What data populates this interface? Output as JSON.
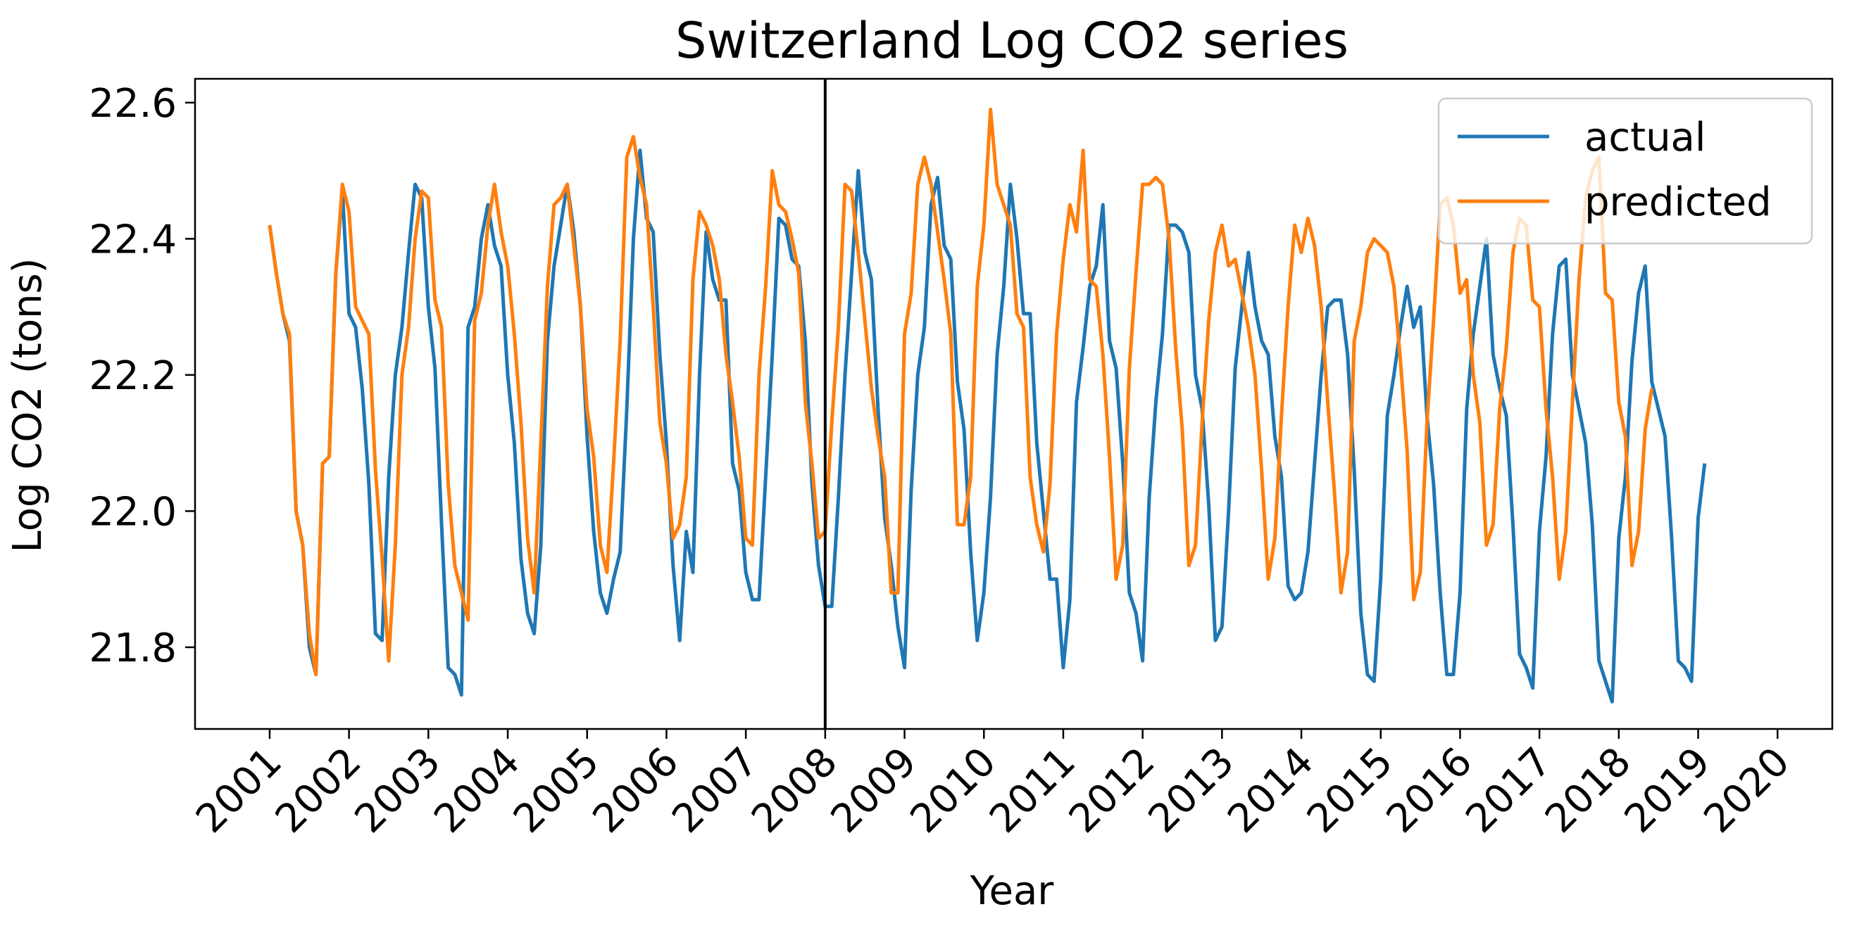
{
  "chart_data": {
    "type": "line",
    "title": "Switzerland Log CO2 series",
    "xlabel": "Year",
    "ylabel": "Log CO2 (tons)",
    "xlim": [
      2000.06,
      2020.69
    ],
    "ylim": [
      21.68,
      22.635
    ],
    "x_ticks": [
      "2001",
      "2002",
      "2003",
      "2004",
      "2005",
      "2006",
      "2007",
      "2008",
      "2009",
      "2010",
      "2011",
      "2012",
      "2013",
      "2014",
      "2015",
      "2016",
      "2017",
      "2018",
      "2019",
      "2020"
    ],
    "y_ticks": [
      "21.8",
      "22.0",
      "22.2",
      "22.4",
      "22.6"
    ],
    "vline_x": 2008.0,
    "grid": false,
    "legend_position": "upper right",
    "legend": [
      "actual",
      "predicted"
    ],
    "series": [
      {
        "name": "actual",
        "color": "#1f77b4",
        "x_start": 2001.0,
        "x_step": 0.08333,
        "values": [
          22.42,
          22.35,
          22.29,
          22.25,
          22.0,
          21.95,
          21.8,
          21.76,
          22.07,
          22.08,
          22.35,
          22.47,
          22.29,
          22.27,
          22.18,
          22.04,
          21.82,
          21.81,
          22.05,
          22.2,
          22.27,
          22.38,
          22.48,
          22.46,
          22.3,
          22.21,
          21.98,
          21.77,
          21.76,
          21.73,
          22.27,
          22.3,
          22.4,
          22.45,
          22.39,
          22.36,
          22.2,
          22.1,
          21.93,
          21.85,
          21.82,
          21.95,
          22.25,
          22.36,
          22.42,
          22.48,
          22.41,
          22.3,
          22.11,
          21.97,
          21.88,
          21.85,
          21.9,
          21.94,
          22.15,
          22.4,
          22.53,
          22.43,
          22.41,
          22.23,
          22.1,
          21.92,
          21.81,
          21.97,
          21.91,
          22.2,
          22.41,
          22.34,
          22.31,
          22.31,
          22.07,
          22.03,
          21.91,
          21.87,
          21.87,
          22.05,
          22.23,
          22.43,
          22.42,
          22.37,
          22.36,
          22.25,
          22.04,
          21.92,
          21.86,
          21.86,
          22.02,
          22.2,
          22.35,
          22.5,
          22.38,
          22.34,
          22.15,
          21.99,
          21.92,
          21.83,
          21.77,
          22.03,
          22.2,
          22.27,
          22.45,
          22.49,
          22.39,
          22.37,
          22.19,
          22.12,
          21.94,
          21.81,
          21.88,
          22.02,
          22.23,
          22.33,
          22.48,
          22.4,
          22.29,
          22.29,
          22.1,
          22.0,
          21.9,
          21.9,
          21.77,
          21.87,
          22.16,
          22.24,
          22.33,
          22.36,
          22.45,
          22.25,
          22.21,
          22.07,
          21.88,
          21.85,
          21.78,
          22.02,
          22.16,
          22.26,
          22.42,
          22.42,
          22.41,
          22.38,
          22.2,
          22.15,
          22.01,
          21.81,
          21.83,
          22.0,
          22.21,
          22.3,
          22.38,
          22.3,
          22.25,
          22.23,
          22.11,
          22.05,
          21.89,
          21.87,
          21.88,
          21.94,
          22.07,
          22.2,
          22.3,
          22.31,
          22.31,
          22.23,
          22.06,
          21.85,
          21.76,
          21.75,
          21.9,
          22.14,
          22.2,
          22.27,
          22.33,
          22.27,
          22.3,
          22.14,
          22.04,
          21.88,
          21.76,
          21.76,
          21.88,
          22.15,
          22.26,
          22.33,
          22.4,
          22.23,
          22.18,
          22.14,
          21.98,
          21.79,
          21.77,
          21.74,
          21.97,
          22.08,
          22.26,
          22.36,
          22.37,
          22.2,
          22.15,
          22.1,
          21.98,
          21.78,
          21.75,
          21.72,
          21.96,
          22.05,
          22.22,
          22.32,
          22.36,
          22.19,
          22.15,
          22.11,
          21.96,
          21.78,
          21.77,
          21.75,
          21.99,
          22.07
        ]
      },
      {
        "name": "predicted",
        "color": "#ff7f0e",
        "x_start": 2001.0,
        "x_step": 0.08333,
        "values": [
          22.42,
          22.35,
          22.29,
          22.26,
          22.0,
          21.95,
          21.82,
          21.76,
          22.07,
          22.08,
          22.35,
          22.48,
          22.44,
          22.3,
          22.28,
          22.26,
          22.06,
          21.93,
          21.78,
          21.95,
          22.2,
          22.27,
          22.4,
          22.47,
          22.46,
          22.31,
          22.27,
          22.04,
          21.92,
          21.88,
          21.84,
          22.28,
          22.32,
          22.42,
          22.48,
          22.41,
          22.36,
          22.26,
          22.13,
          21.96,
          21.88,
          22.1,
          22.33,
          22.45,
          22.46,
          22.48,
          22.39,
          22.3,
          22.15,
          22.08,
          21.95,
          21.91,
          22.07,
          22.25,
          22.52,
          22.55,
          22.49,
          22.45,
          22.3,
          22.13,
          22.07,
          21.96,
          21.98,
          22.05,
          22.34,
          22.44,
          22.42,
          22.39,
          22.34,
          22.23,
          22.16,
          22.08,
          21.96,
          21.95,
          22.2,
          22.33,
          22.5,
          22.45,
          22.44,
          22.4,
          22.35,
          22.16,
          22.07,
          21.96,
          21.97,
          22.13,
          22.27,
          22.48,
          22.47,
          22.38,
          22.28,
          22.18,
          22.11,
          22.05,
          21.88,
          21.88,
          22.26,
          22.32,
          22.48,
          22.52,
          22.48,
          22.41,
          22.34,
          22.26,
          21.98,
          21.98,
          22.05,
          22.33,
          22.42,
          22.59,
          22.48,
          22.45,
          22.42,
          22.29,
          22.27,
          22.05,
          21.98,
          21.94,
          22.04,
          22.26,
          22.37,
          22.45,
          22.41,
          22.53,
          22.34,
          22.33,
          22.23,
          22.08,
          21.9,
          21.95,
          22.21,
          22.35,
          22.48,
          22.48,
          22.49,
          22.48,
          22.4,
          22.24,
          22.12,
          21.92,
          21.95,
          22.13,
          22.28,
          22.38,
          22.42,
          22.36,
          22.37,
          22.32,
          22.27,
          22.2,
          22.06,
          21.9,
          21.96,
          22.14,
          22.3,
          22.42,
          22.38,
          22.43,
          22.39,
          22.3,
          22.16,
          22.03,
          21.88,
          21.94,
          22.25,
          22.3,
          22.38,
          22.4,
          22.39,
          22.38,
          22.33,
          22.22,
          22.09,
          21.87,
          21.91,
          22.13,
          22.28,
          22.45,
          22.46,
          22.42,
          22.32,
          22.34,
          22.2,
          22.13,
          21.95,
          21.98,
          22.15,
          22.24,
          22.38,
          22.43,
          22.42,
          22.31,
          22.3,
          22.15,
          22.05,
          21.9,
          21.97,
          22.16,
          22.34,
          22.46,
          22.5,
          22.52,
          22.32,
          22.31,
          22.16,
          22.11,
          21.92,
          21.97,
          22.12,
          22.18
        ]
      }
    ]
  }
}
